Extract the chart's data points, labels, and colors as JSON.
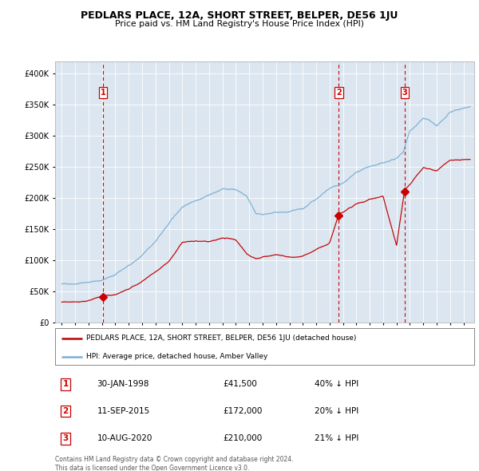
{
  "title": "PEDLARS PLACE, 12A, SHORT STREET, BELPER, DE56 1JU",
  "subtitle": "Price paid vs. HM Land Registry's House Price Index (HPI)",
  "plot_bg_color": "#dce6f0",
  "ylim": [
    0,
    420000
  ],
  "yticks": [
    0,
    50000,
    100000,
    150000,
    200000,
    250000,
    300000,
    350000,
    400000
  ],
  "ytick_labels": [
    "£0",
    "£50K",
    "£100K",
    "£150K",
    "£200K",
    "£250K",
    "£300K",
    "£350K",
    "£400K"
  ],
  "hpi_color": "#7bafd4",
  "price_color": "#c00000",
  "vline_color": "#cc0000",
  "grid_color": "#ffffff",
  "sale_dates": [
    1998.08,
    2015.69,
    2020.61
  ],
  "sale_prices": [
    41500,
    172000,
    210000
  ],
  "sale_labels": [
    "1",
    "2",
    "3"
  ],
  "legend_label_red": "PEDLARS PLACE, 12A, SHORT STREET, BELPER, DE56 1JU (detached house)",
  "legend_label_blue": "HPI: Average price, detached house, Amber Valley",
  "table_data": [
    [
      "1",
      "30-JAN-1998",
      "£41,500",
      "40% ↓ HPI"
    ],
    [
      "2",
      "11-SEP-2015",
      "£172,000",
      "20% ↓ HPI"
    ],
    [
      "3",
      "10-AUG-2020",
      "£210,000",
      "21% ↓ HPI"
    ]
  ],
  "footer_text": "Contains HM Land Registry data © Crown copyright and database right 2024.\nThis data is licensed under the Open Government Licence v3.0.",
  "xlim_start": 1994.5,
  "xlim_end": 2025.8,
  "hpi_anchors_t": [
    1995,
    1996,
    1997,
    1998,
    1999,
    2000,
    2001,
    2002,
    2003,
    2004,
    2005,
    2006,
    2007,
    2008.0,
    2008.8,
    2009.5,
    2010,
    2011,
    2012,
    2013,
    2014,
    2015,
    2016,
    2017,
    2018,
    2019,
    2020,
    2020.5,
    2021,
    2022,
    2022.5,
    2023,
    2024,
    2025.5
  ],
  "hpi_anchors_v": [
    62000,
    64000,
    67000,
    70000,
    78000,
    92000,
    108000,
    130000,
    158000,
    185000,
    196000,
    207000,
    215000,
    215000,
    205000,
    178000,
    175000,
    178000,
    177000,
    179000,
    195000,
    210000,
    218000,
    233000,
    243000,
    248000,
    255000,
    265000,
    300000,
    320000,
    315000,
    305000,
    325000,
    335000
  ],
  "red_anchors_t": [
    1995,
    1996,
    1997,
    1998,
    1999,
    2000,
    2001,
    2002,
    2003,
    2004,
    2005,
    2006,
    2007,
    2008.0,
    2008.8,
    2009.5,
    2010,
    2011,
    2012,
    2013,
    2014,
    2015,
    2015.69,
    2016,
    2017,
    2018,
    2019,
    2020,
    2020.61,
    2021,
    2022,
    2023,
    2024,
    2025.5
  ],
  "red_anchors_v": [
    33000,
    33000,
    33500,
    41500,
    43000,
    52000,
    66000,
    82000,
    98000,
    128000,
    130000,
    128000,
    133000,
    130000,
    107000,
    100000,
    103000,
    107000,
    103000,
    104000,
    115000,
    125000,
    172000,
    175000,
    188000,
    196000,
    200000,
    120000,
    210000,
    218000,
    245000,
    240000,
    255000,
    255000
  ]
}
